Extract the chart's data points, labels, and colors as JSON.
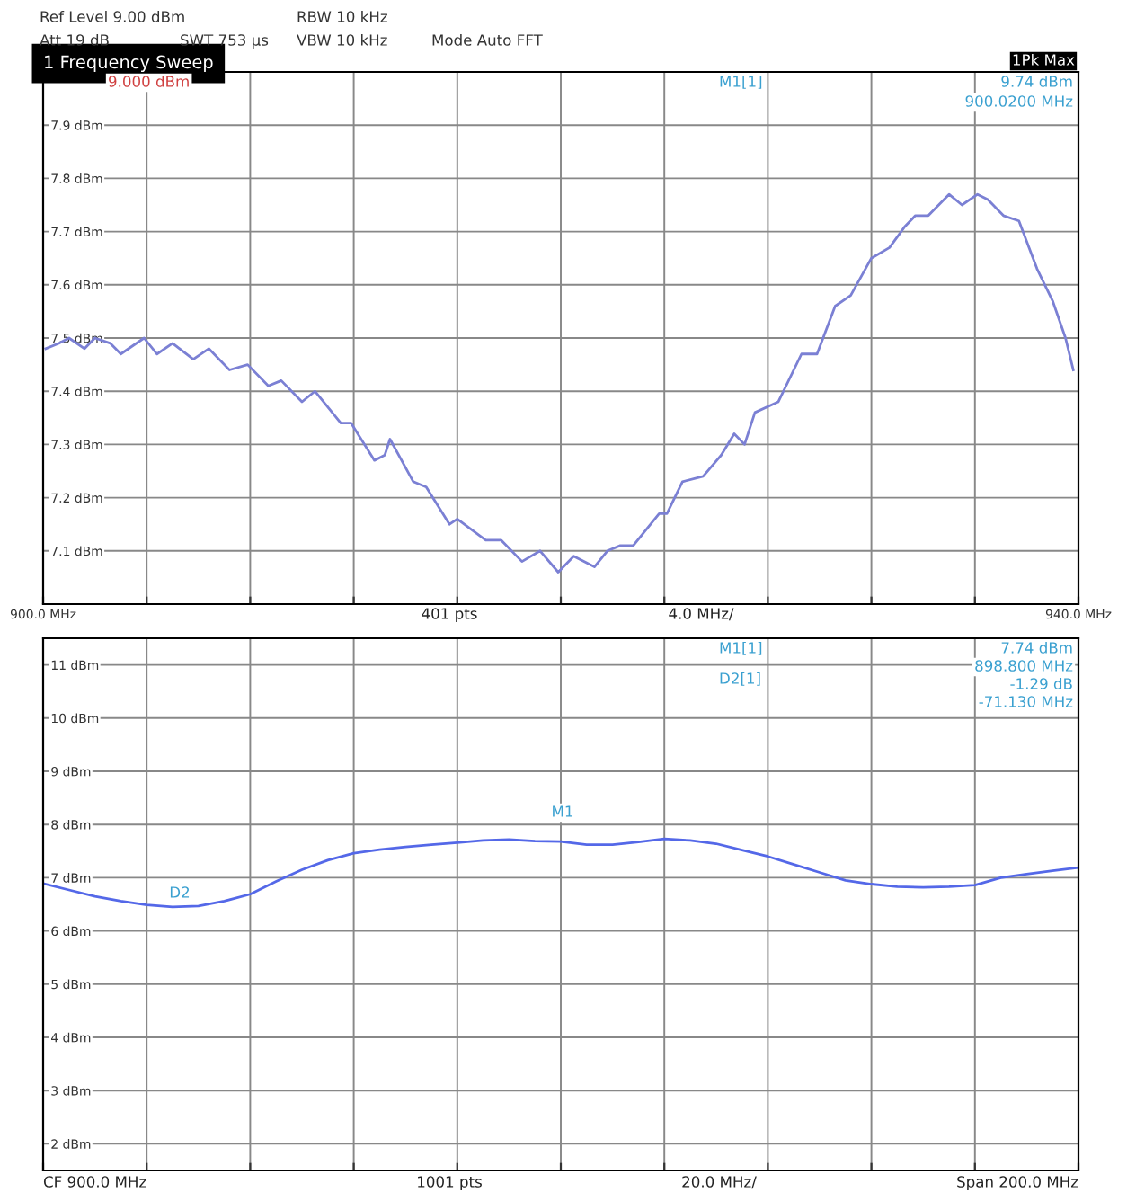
{
  "chart_data": [
    {
      "type": "line",
      "title": "1 Frequency Sweep",
      "annotations": [
        "Ref Level 9.00 dBm",
        "Att 19 dB",
        "SWT 753 µs",
        "RBW 10 kHz",
        "VBW 10 kHz",
        "Mode Auto FFT",
        "1Pk Max",
        "9.000 dBm",
        "M1[1]",
        "9.74 dBm",
        "900.0200 MHz",
        "401 pts",
        "4.0 MHz/"
      ],
      "series": [
        {
          "color": "#7b80d4",
          "x": [
            900.1,
            900.6,
            901.0,
            901.6,
            902.0,
            902.6,
            903.0,
            903.9,
            904.4,
            905.0,
            905.8,
            906.4,
            907.2,
            907.9,
            908.7,
            909.2,
            910.0,
            910.5,
            911.5,
            911.9,
            912.8,
            913.2,
            913.4,
            914.3,
            914.8,
            915.7,
            916.0,
            917.1,
            917.7,
            918.5,
            919.2,
            919.9,
            920.5,
            921.3,
            921.8,
            922.3,
            922.8,
            923.8,
            924.1,
            924.7,
            925.5,
            926.2,
            926.7,
            927.1,
            927.5,
            928.4,
            929.3,
            929.9,
            930.6,
            931.2,
            932.0,
            932.7,
            933.3,
            933.7,
            934.2,
            935.0,
            935.5,
            936.1,
            936.5,
            937.1,
            937.7,
            938.4,
            939.0,
            939.5,
            939.8
          ],
          "values": [
            7.48,
            7.49,
            7.5,
            7.48,
            7.5,
            7.49,
            7.47,
            7.5,
            7.47,
            7.49,
            7.46,
            7.48,
            7.44,
            7.45,
            7.41,
            7.42,
            7.38,
            7.4,
            7.34,
            7.34,
            7.27,
            7.28,
            7.31,
            7.23,
            7.22,
            7.15,
            7.16,
            7.12,
            7.12,
            7.08,
            7.1,
            7.06,
            7.09,
            7.07,
            7.1,
            7.11,
            7.11,
            7.17,
            7.17,
            7.23,
            7.24,
            7.28,
            7.32,
            7.3,
            7.36,
            7.38,
            7.47,
            7.47,
            7.56,
            7.58,
            7.65,
            7.67,
            7.71,
            7.73,
            7.73,
            7.77,
            7.75,
            7.77,
            7.76,
            7.73,
            7.72,
            7.63,
            7.57,
            7.5,
            7.44
          ]
        }
      ],
      "xlim": [
        900,
        940
      ],
      "xticks": [
        {
          "value": 900,
          "label": "900.0 MHz"
        },
        {
          "value": 904,
          "label": null
        },
        {
          "value": 908,
          "label": null
        },
        {
          "value": 912,
          "label": null
        },
        {
          "value": 916,
          "label": null
        },
        {
          "value": 920,
          "label": null
        },
        {
          "value": 924,
          "label": null
        },
        {
          "value": 928,
          "label": null
        },
        {
          "value": 932,
          "label": null
        },
        {
          "value": 936,
          "label": null
        },
        {
          "value": 940,
          "label": "940.0 MHz"
        }
      ],
      "ylim": [
        7.0,
        8.0
      ],
      "yticks": [
        {
          "value": 7.1,
          "label": "7.1 dBm"
        },
        {
          "value": 7.2,
          "label": "7.2 dBm"
        },
        {
          "value": 7.3,
          "label": "7.3 dBm"
        },
        {
          "value": 7.4,
          "label": "7.4 dBm"
        },
        {
          "value": 7.5,
          "label": "7.5 dBm"
        },
        {
          "value": 7.6,
          "label": "7.6 dBm"
        },
        {
          "value": 7.7,
          "label": "7.7 dBm"
        },
        {
          "value": 7.8,
          "label": "7.8 dBm"
        },
        {
          "value": 7.9,
          "label": "7.9 dBm"
        }
      ],
      "grid": true,
      "line_style": "solid",
      "marker": "none"
    },
    {
      "type": "line",
      "annotations": [
        "M1[1]",
        "7.74 dBm",
        "898.800 MHz",
        "D2[1]",
        "-1.29 dB",
        "-71.130 MHz",
        "CF 900.0 MHz",
        "1001 pts",
        "20.0 MHz/",
        "Span 200.0 MHz",
        "M1",
        "D2"
      ],
      "categories": [
        null,
        null,
        null,
        null,
        null,
        null,
        null,
        null,
        null,
        null,
        null,
        null,
        null,
        null,
        null,
        null,
        null,
        null,
        null,
        null,
        null,
        null,
        null,
        null,
        null,
        null,
        null,
        null,
        null,
        null,
        null,
        null,
        null,
        null,
        null,
        null,
        null,
        null,
        null,
        null,
        null
      ],
      "series": [
        {
          "color": "#5468e8",
          "values": [
            6.89,
            6.77,
            6.65,
            6.56,
            6.49,
            6.45,
            6.47,
            6.56,
            6.69,
            6.93,
            7.15,
            7.33,
            7.46,
            7.53,
            7.58,
            7.62,
            7.66,
            7.7,
            7.72,
            7.69,
            7.68,
            7.62,
            7.62,
            7.67,
            7.73,
            7.7,
            7.64,
            7.52,
            7.4,
            7.25,
            7.1,
            6.95,
            6.88,
            6.83,
            6.82,
            6.83,
            6.86,
            7.0,
            7.07,
            7.13,
            7.19
          ]
        }
      ],
      "ylim": [
        1.5,
        11.5
      ],
      "yticks": [
        {
          "value": 2,
          "label": "2 dBm"
        },
        {
          "value": 3,
          "label": "3 dBm"
        },
        {
          "value": 4,
          "label": "4 dBm"
        },
        {
          "value": 5,
          "label": "5 dBm"
        },
        {
          "value": 6,
          "label": "6 dBm"
        },
        {
          "value": 7,
          "label": "7 dBm"
        },
        {
          "value": 8,
          "label": "8 dBm"
        },
        {
          "value": 9,
          "label": "9 dBm"
        },
        {
          "value": 10,
          "label": "10 dBm"
        },
        {
          "value": 11,
          "label": "11 dBm"
        }
      ],
      "grid": true,
      "line_style": "solid",
      "marker": "none"
    }
  ]
}
